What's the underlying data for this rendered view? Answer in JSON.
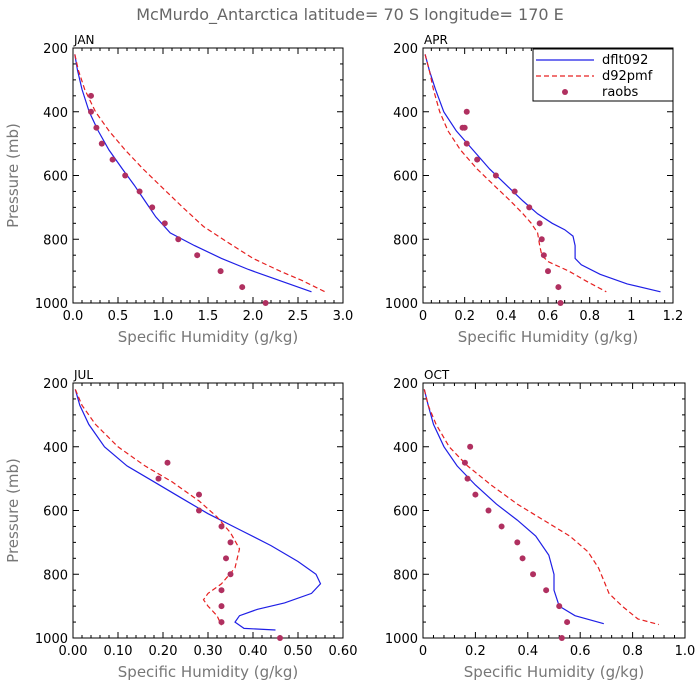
{
  "title": "McMurdo_Antarctica   latitude= 70 S longitude= 170 E",
  "colors": {
    "dflt": "#1f1fe6",
    "d92": "#e62020",
    "raobs": "#b03060",
    "axis": "#000000",
    "label": "#777777"
  },
  "legend": {
    "position": "top-right of APR panel",
    "entries": [
      "dflt092",
      "d92pmf",
      "raobs"
    ]
  },
  "chart_data": [
    {
      "type": "line",
      "panel": "JAN",
      "xlabel": "Specific Humidity (g/kg)",
      "ylabel": "Pressure (mb)",
      "xlim": [
        0,
        3.0
      ],
      "ylim": [
        200,
        1000
      ],
      "xticks": [
        0.0,
        0.5,
        1.0,
        1.5,
        2.0,
        2.5,
        3.0
      ],
      "xtick_labels": [
        "0.0",
        "0.5",
        "1.0",
        "1.5",
        "2.0",
        "2.5",
        "3.0"
      ],
      "yticks": [
        200,
        400,
        600,
        800,
        1000
      ],
      "ytick_labels": [
        "200",
        "400",
        "600",
        "800",
        "1000"
      ],
      "series": [
        {
          "name": "dflt092",
          "style": "solid",
          "x": [
            0.02,
            0.05,
            0.1,
            0.18,
            0.28,
            0.4,
            0.55,
            0.68,
            0.8,
            0.92,
            1.08,
            1.35,
            1.65,
            1.95,
            2.3,
            2.65
          ],
          "y": [
            220,
            270,
            330,
            400,
            460,
            520,
            580,
            630,
            680,
            730,
            780,
            820,
            860,
            895,
            930,
            965
          ]
        },
        {
          "name": "d92pmf",
          "style": "dashed",
          "x": [
            0.02,
            0.06,
            0.13,
            0.25,
            0.4,
            0.58,
            0.78,
            1.0,
            1.22,
            1.45,
            1.72,
            2.0,
            2.3,
            2.55,
            2.8
          ],
          "y": [
            220,
            270,
            330,
            400,
            460,
            520,
            580,
            640,
            700,
            760,
            810,
            860,
            900,
            930,
            965
          ]
        },
        {
          "name": "raobs",
          "style": "points",
          "x": [
            0.2,
            0.2,
            0.26,
            0.32,
            0.44,
            0.58,
            0.74,
            0.88,
            1.02,
            1.17,
            1.38,
            1.64,
            1.88,
            2.14
          ],
          "y": [
            350,
            400,
            450,
            500,
            550,
            600,
            650,
            700,
            750,
            800,
            850,
            900,
            950,
            1000
          ]
        }
      ]
    },
    {
      "type": "line",
      "panel": "APR",
      "xlabel": "Specific Humidity (g/kg)",
      "ylabel": "",
      "xlim": [
        0,
        1.2
      ],
      "ylim": [
        200,
        1000
      ],
      "xticks": [
        0.0,
        0.2,
        0.4,
        0.6,
        0.8,
        1.0,
        1.2
      ],
      "xtick_labels": [
        "0",
        "0.2",
        "0.4",
        "0.6",
        "0.8",
        "1",
        "1.2"
      ],
      "yticks": [
        200,
        400,
        600,
        800,
        1000
      ],
      "ytick_labels": [
        "200",
        "400",
        "600",
        "800",
        "1000"
      ],
      "series": [
        {
          "name": "dflt092",
          "style": "solid",
          "x": [
            0.01,
            0.03,
            0.06,
            0.1,
            0.16,
            0.24,
            0.32,
            0.4,
            0.48,
            0.55,
            0.62,
            0.68,
            0.72,
            0.73,
            0.73,
            0.76,
            0.85,
            0.98,
            1.14
          ],
          "y": [
            220,
            270,
            330,
            400,
            460,
            520,
            580,
            630,
            680,
            720,
            750,
            770,
            790,
            820,
            860,
            880,
            910,
            940,
            965
          ]
        },
        {
          "name": "d92pmf",
          "style": "dashed",
          "x": [
            0.01,
            0.03,
            0.05,
            0.08,
            0.12,
            0.18,
            0.26,
            0.34,
            0.42,
            0.48,
            0.52,
            0.55,
            0.56,
            0.57,
            0.6,
            0.7,
            0.78,
            0.88
          ],
          "y": [
            220,
            270,
            330,
            400,
            460,
            520,
            580,
            630,
            680,
            720,
            750,
            780,
            820,
            850,
            870,
            900,
            930,
            965
          ]
        },
        {
          "name": "raobs",
          "style": "points",
          "x": [
            0.21,
            0.2,
            0.19,
            0.21,
            0.26,
            0.35,
            0.44,
            0.51,
            0.56,
            0.57,
            0.58,
            0.6,
            0.65,
            0.66
          ],
          "y": [
            400,
            450,
            450,
            500,
            550,
            600,
            650,
            700,
            750,
            800,
            850,
            900,
            950,
            1000
          ]
        }
      ]
    },
    {
      "type": "line",
      "panel": "JUL",
      "xlabel": "Specific Humidity (g/kg)",
      "ylabel": "Pressure (mb)",
      "xlim": [
        0,
        0.6
      ],
      "ylim": [
        200,
        1000
      ],
      "xticks": [
        0.0,
        0.1,
        0.2,
        0.3,
        0.4,
        0.5,
        0.6
      ],
      "xtick_labels": [
        "0.00",
        "0.10",
        "0.20",
        "0.30",
        "0.40",
        "0.50",
        "0.60"
      ],
      "yticks": [
        200,
        400,
        600,
        800,
        1000
      ],
      "ytick_labels": [
        "200",
        "400",
        "600",
        "800",
        "1000"
      ],
      "series": [
        {
          "name": "dflt092",
          "style": "solid",
          "x": [
            0.005,
            0.015,
            0.035,
            0.07,
            0.12,
            0.18,
            0.24,
            0.3,
            0.37,
            0.44,
            0.5,
            0.54,
            0.55,
            0.53,
            0.47,
            0.41,
            0.37,
            0.36,
            0.38,
            0.45
          ],
          "y": [
            220,
            270,
            330,
            400,
            460,
            510,
            560,
            610,
            660,
            710,
            760,
            800,
            830,
            860,
            890,
            910,
            930,
            950,
            970,
            975
          ]
        },
        {
          "name": "d92pmf",
          "style": "dashed",
          "x": [
            0.005,
            0.02,
            0.05,
            0.1,
            0.16,
            0.22,
            0.28,
            0.32,
            0.35,
            0.37,
            0.36,
            0.33,
            0.3,
            0.29,
            0.3,
            0.32,
            0.33
          ],
          "y": [
            220,
            270,
            330,
            400,
            460,
            510,
            570,
            620,
            670,
            720,
            780,
            830,
            860,
            880,
            900,
            930,
            960
          ]
        },
        {
          "name": "raobs",
          "style": "points",
          "x": [
            0.21,
            0.19,
            0.28,
            0.28,
            0.33,
            0.35,
            0.34,
            0.35,
            0.33,
            0.33,
            0.33,
            0.46
          ],
          "y": [
            450,
            500,
            550,
            600,
            650,
            700,
            750,
            800,
            850,
            900,
            950,
            1000
          ]
        }
      ]
    },
    {
      "type": "line",
      "panel": "OCT",
      "xlabel": "Specific Humidity (g/kg)",
      "ylabel": "",
      "xlim": [
        0,
        1.0
      ],
      "ylim": [
        200,
        1000
      ],
      "xticks": [
        0.0,
        0.2,
        0.4,
        0.6,
        0.8,
        1.0
      ],
      "xtick_labels": [
        "0",
        "0.2",
        "0.4",
        "0.6",
        "0.8",
        "1.0"
      ],
      "yticks": [
        200,
        400,
        600,
        800,
        1000
      ],
      "ytick_labels": [
        "200",
        "400",
        "600",
        "800",
        "1000"
      ],
      "series": [
        {
          "name": "dflt092",
          "style": "solid",
          "x": [
            0.005,
            0.02,
            0.04,
            0.08,
            0.13,
            0.2,
            0.28,
            0.36,
            0.43,
            0.48,
            0.5,
            0.5,
            0.52,
            0.58,
            0.69
          ],
          "y": [
            220,
            270,
            330,
            400,
            460,
            520,
            580,
            630,
            680,
            740,
            800,
            850,
            900,
            930,
            955
          ]
        },
        {
          "name": "d92pmf",
          "style": "dashed",
          "x": [
            0.005,
            0.02,
            0.05,
            0.1,
            0.17,
            0.26,
            0.36,
            0.46,
            0.56,
            0.63,
            0.67,
            0.69,
            0.71,
            0.76,
            0.82,
            0.9
          ],
          "y": [
            220,
            270,
            330,
            400,
            460,
            520,
            580,
            630,
            680,
            730,
            780,
            820,
            860,
            900,
            940,
            958
          ]
        },
        {
          "name": "raobs",
          "style": "points",
          "x": [
            0.18,
            0.16,
            0.17,
            0.2,
            0.25,
            0.3,
            0.36,
            0.38,
            0.42,
            0.47,
            0.52,
            0.55,
            0.53
          ],
          "y": [
            400,
            450,
            500,
            550,
            600,
            650,
            700,
            750,
            800,
            850,
            900,
            950,
            1000
          ]
        }
      ]
    }
  ]
}
